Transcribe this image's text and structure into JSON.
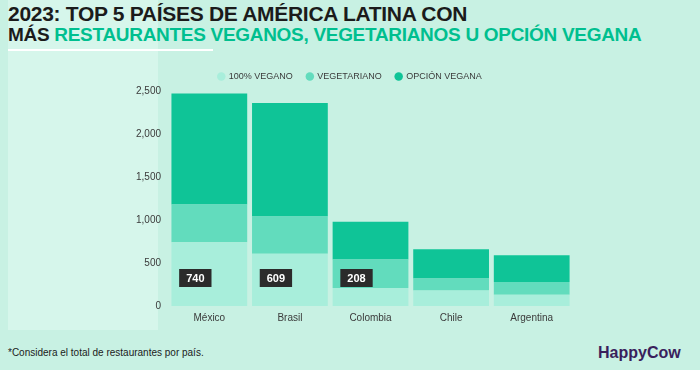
{
  "chart_data": {
    "type": "bar",
    "title": "2023: TOP 5 PAÍSES DE AMÉRICA LATINA CON",
    "subtitle": "MÁS RESTAURANTES VEGANOS, VEGETARIANOS U OPCIÓN VEGANA",
    "categories": [
      "México",
      "Brasil",
      "Colombia",
      "Chile",
      "Argentina"
    ],
    "stacked": true,
    "series": [
      {
        "name": "100% VEGANO",
        "color": "#a8eedb",
        "values": [
          740,
          609,
          208,
          180,
          130
        ],
        "data_labels": true,
        "value_labels": [
          "740",
          "609",
          "208",
          null,
          null
        ]
      },
      {
        "name": "VEGETARIANO",
        "color": "#62dcbd",
        "values": [
          440,
          431,
          332,
          140,
          150
        ]
      },
      {
        "name": "OPCIÓN VEGANA",
        "color": "#0fc497",
        "values": [
          1290,
          1320,
          440,
          340,
          310
        ]
      }
    ],
    "ylim": [
      0,
      2500
    ],
    "yticks": [
      0,
      500,
      {
        "value": 1000,
        "label": "1,000"
      },
      {
        "value": 1500,
        "label": "1,500"
      },
      {
        "value": 2000,
        "label": "2,000"
      },
      {
        "value": 2500,
        "label": "2,500"
      }
    ],
    "grid": false,
    "legend": "top",
    "annotations": [
      "*Considera el total de restaurantes por país.",
      "HappyCow"
    ]
  }
}
